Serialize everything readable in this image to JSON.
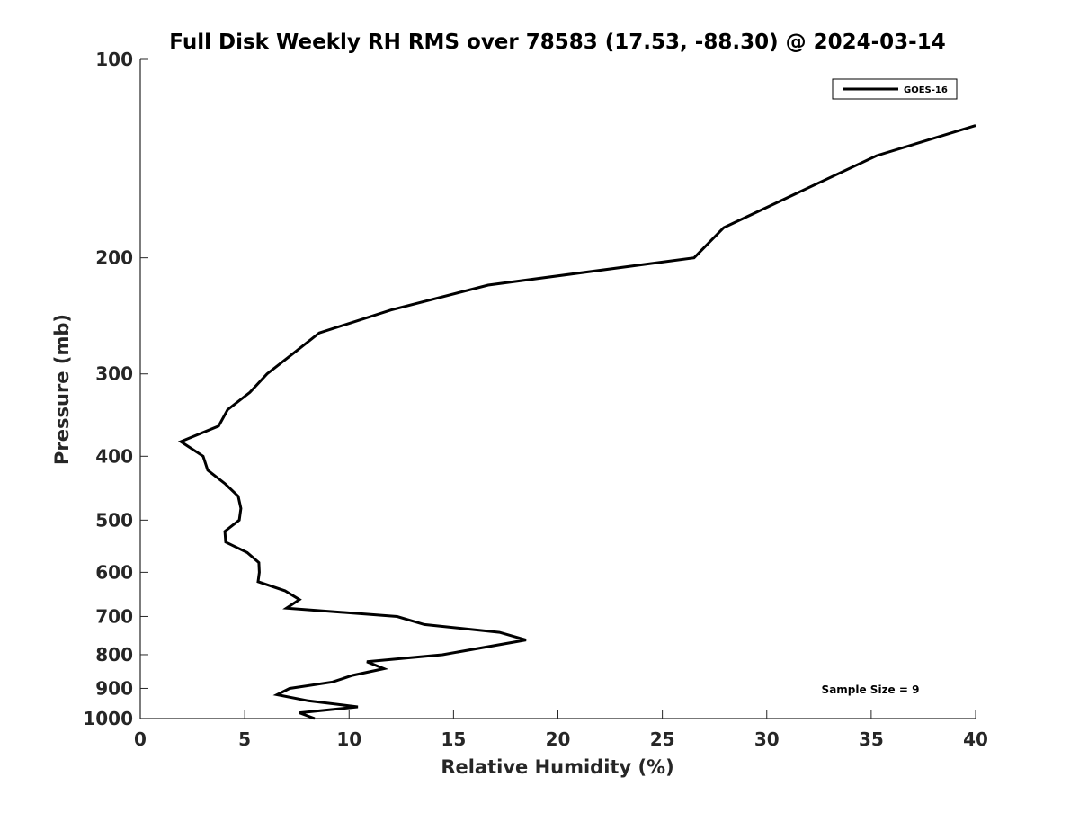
{
  "chart_data": {
    "type": "line",
    "title": "Full Disk Weekly RH RMS over 78583 (17.53, -88.30) @ 2024-03-14",
    "xlabel": "Relative Humidity (%)",
    "ylabel": "Pressure (mb)",
    "xlim": [
      0,
      40
    ],
    "ylim": [
      100,
      1000
    ],
    "yscale": "log",
    "y_reversed": true,
    "grid": false,
    "xticks": [
      "0",
      "5",
      "10",
      "15",
      "20",
      "25",
      "30",
      "35",
      "40"
    ],
    "yticks": [
      "100",
      "200",
      "300",
      "400",
      "500",
      "600",
      "700",
      "800",
      "900",
      "1000"
    ],
    "legend": {
      "placement": "top-right",
      "entries": [
        "GOES-16"
      ]
    },
    "annotation": "Sample Size = 9",
    "series": [
      {
        "name": "GOES-16",
        "color": "#000000",
        "points": [
          [
            40.0,
            126
          ],
          [
            35.26,
            140
          ],
          [
            27.94,
            180
          ],
          [
            26.52,
            200
          ],
          [
            16.66,
            220
          ],
          [
            12.01,
            240
          ],
          [
            8.57,
            260
          ],
          [
            7.28,
            280
          ],
          [
            6.07,
            300
          ],
          [
            5.25,
            320
          ],
          [
            4.18,
            340
          ],
          [
            3.75,
            360
          ],
          [
            1.94,
            380
          ],
          [
            3.01,
            400
          ],
          [
            3.23,
            420
          ],
          [
            4.05,
            440
          ],
          [
            4.69,
            460
          ],
          [
            4.82,
            480
          ],
          [
            4.74,
            500
          ],
          [
            4.05,
            520
          ],
          [
            4.09,
            540
          ],
          [
            5.12,
            560
          ],
          [
            5.68,
            580
          ],
          [
            5.7,
            600
          ],
          [
            5.64,
            620
          ],
          [
            6.93,
            640
          ],
          [
            7.62,
            660
          ],
          [
            7.0,
            680
          ],
          [
            12.3,
            700
          ],
          [
            13.6,
            720
          ],
          [
            17.2,
            740
          ],
          [
            18.47,
            760
          ],
          [
            14.47,
            800
          ],
          [
            10.85,
            820
          ],
          [
            11.67,
            840
          ],
          [
            10.16,
            860
          ],
          [
            9.21,
            880
          ],
          [
            7.15,
            900
          ],
          [
            6.55,
            920
          ],
          [
            8.05,
            940
          ],
          [
            10.42,
            960
          ],
          [
            7.62,
            980
          ],
          [
            8.35,
            1000
          ]
        ]
      }
    ]
  }
}
